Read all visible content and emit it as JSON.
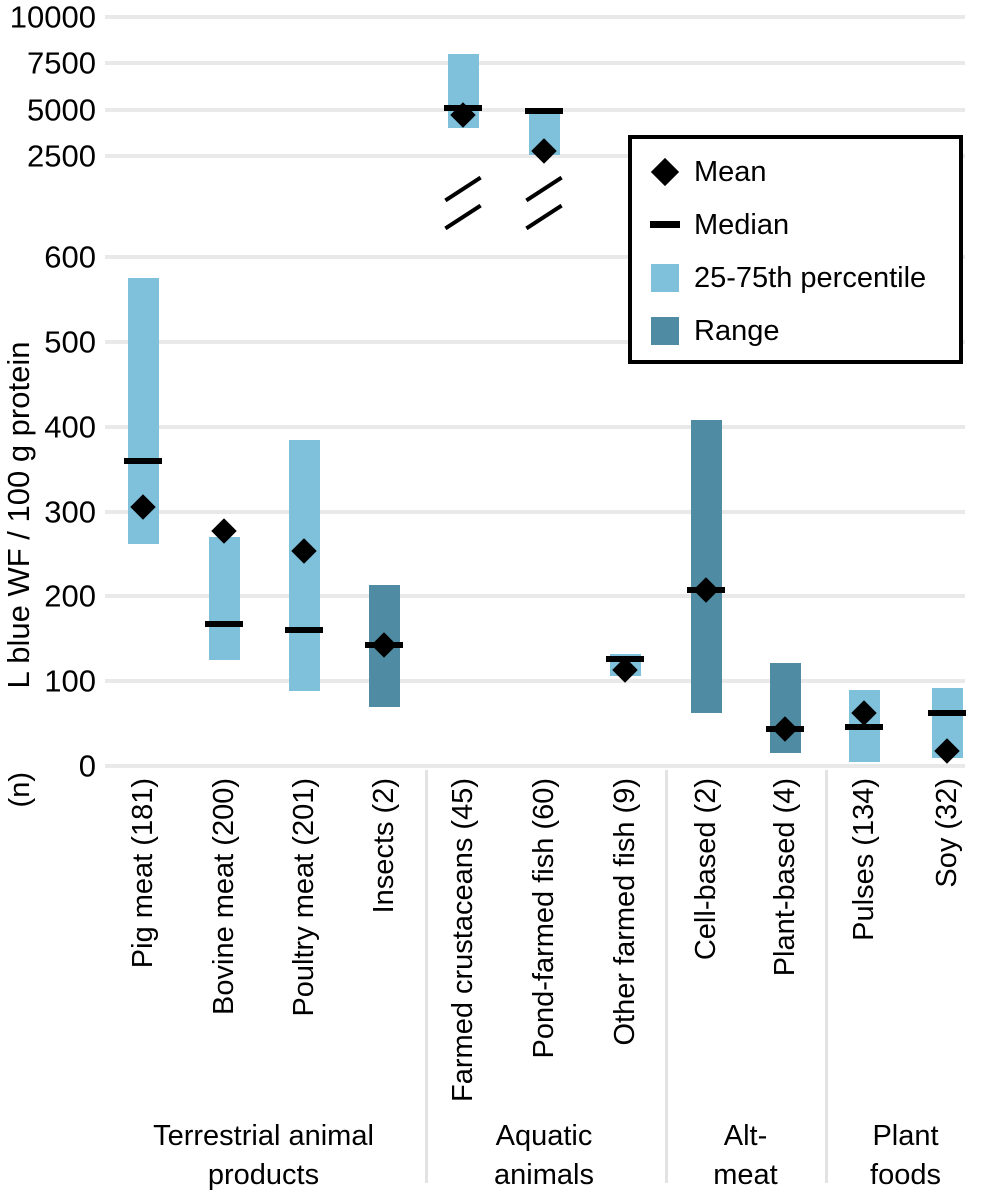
{
  "axis": {
    "y_label": "L blue WF / 100 g protein",
    "n_label": "(n)",
    "upper_ticks": [
      10000,
      7500,
      5000,
      2500
    ],
    "lower_ticks": [
      600,
      500,
      400,
      300,
      200,
      100,
      0
    ]
  },
  "legend": {
    "items": [
      {
        "symbol": "mean-diamond",
        "label": "Mean"
      },
      {
        "symbol": "median-dash",
        "label": "Median"
      },
      {
        "symbol": "percentile-swatch",
        "label": "25-75th percentile"
      },
      {
        "symbol": "range-swatch",
        "label": "Range"
      }
    ]
  },
  "colors": {
    "percentile": "#7fc0da",
    "range": "#4f8ca3",
    "marker": "#000000",
    "gridline": "#e9e9e9",
    "separator": "#e2e2e2"
  },
  "chart_data": {
    "type": "bar",
    "variant": "percentile/range summary bars with broken y-axis, mean and median markers",
    "title": "",
    "xlabel": "",
    "ylabel": "L blue WF / 100 g protein",
    "upper_axis_range": [
      2500,
      10000
    ],
    "lower_axis_range": [
      0,
      600
    ],
    "grid": true,
    "legend_position": "top-right",
    "groups": [
      {
        "lines": [
          "Terrestrial animal",
          "products"
        ]
      },
      {
        "lines": [
          "Aquatic",
          "animals"
        ]
      },
      {
        "lines": [
          "Alt-",
          "meat"
        ]
      },
      {
        "lines": [
          "Plant",
          "foods"
        ]
      }
    ],
    "categories": [
      {
        "label": "Pig meat (181)",
        "group": 0,
        "style": "percentile",
        "panel": "lower",
        "axis_break": false,
        "low": 262,
        "high": 575,
        "median": 360,
        "mean": 305
      },
      {
        "label": "Bovine meat (200)",
        "group": 0,
        "style": "percentile",
        "panel": "lower",
        "axis_break": false,
        "low": 125,
        "high": 270,
        "median": 167,
        "mean": 277
      },
      {
        "label": "Poultry meat (201)",
        "group": 0,
        "style": "percentile",
        "panel": "lower",
        "axis_break": false,
        "low": 88,
        "high": 385,
        "median": 160,
        "mean": 253
      },
      {
        "label": "Insects (2)",
        "group": 0,
        "style": "range",
        "panel": "lower",
        "axis_break": false,
        "low": 70,
        "high": 213,
        "median": 143,
        "mean": 143
      },
      {
        "label": "Farmed crustaceans (45)",
        "group": 1,
        "style": "percentile",
        "panel": "upper",
        "axis_break": true,
        "low": 4000,
        "high": 8000,
        "median": 5100,
        "mean": 4700
      },
      {
        "label": "Pond-farmed fish (60)",
        "group": 1,
        "style": "percentile",
        "panel": "upper",
        "axis_break": true,
        "low": 2550,
        "high": 4880,
        "median": 4950,
        "mean": 2750
      },
      {
        "label": "Other farmed fish (9)",
        "group": 1,
        "style": "percentile",
        "panel": "lower",
        "axis_break": false,
        "low": 106,
        "high": 132,
        "median": 126,
        "mean": 113
      },
      {
        "label": "Cell-based (2)",
        "group": 2,
        "style": "range",
        "panel": "lower",
        "axis_break": false,
        "low": 62,
        "high": 408,
        "median": 208,
        "mean": 208
      },
      {
        "label": "Plant-based (4)",
        "group": 2,
        "style": "range",
        "panel": "lower",
        "axis_break": false,
        "low": 15,
        "high": 122,
        "median": 44,
        "mean": 44
      },
      {
        "label": "Pulses (134)",
        "group": 3,
        "style": "percentile",
        "panel": "lower",
        "axis_break": false,
        "low": 5,
        "high": 90,
        "median": 46,
        "mean": 63
      },
      {
        "label": "Soy (32)",
        "group": 3,
        "style": "percentile",
        "panel": "lower",
        "axis_break": false,
        "low": 10,
        "high": 92,
        "median": 62,
        "mean": 18
      }
    ]
  }
}
